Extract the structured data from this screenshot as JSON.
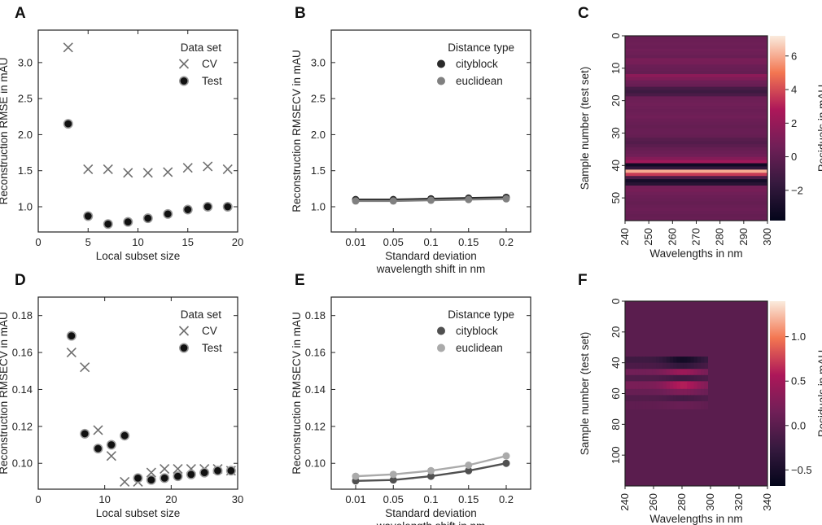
{
  "colors": {
    "cross": "#707070",
    "test_face": "#111111",
    "test_edge": "#9a9a9a",
    "cityblock_top": "#2a2a2a",
    "euclidean_top": "#808080",
    "cityblock_bottom": "#505050",
    "euclidean_bottom": "#aaaaaa",
    "heat_base": "#a0225a"
  },
  "chart_data": [
    {
      "id": "A",
      "panel_label": "A",
      "type": "scatter",
      "xlabel": "Local subset size",
      "ylabel": "Reconstruction RMSE in mAU",
      "xlim": [
        0,
        20
      ],
      "ylim": [
        0.65,
        3.45
      ],
      "xticks": [
        0,
        5,
        10,
        15,
        20
      ],
      "yticks": [
        1.0,
        1.5,
        2.0,
        2.5,
        3.0
      ],
      "ytick_labels": [
        "1.0",
        "1.5",
        "2.0",
        "2.5",
        "3.0"
      ],
      "legend_title": "Data set",
      "series": [
        {
          "name": "CV",
          "marker": "x",
          "x": [
            3,
            5,
            7,
            9,
            11,
            13,
            15,
            17,
            19
          ],
          "values": [
            3.21,
            1.52,
            1.52,
            1.47,
            1.47,
            1.48,
            1.54,
            1.56,
            1.52
          ]
        },
        {
          "name": "Test",
          "marker": "o",
          "x": [
            3,
            5,
            7,
            9,
            11,
            13,
            15,
            17,
            19
          ],
          "values": [
            2.15,
            0.87,
            0.76,
            0.79,
            0.84,
            0.9,
            0.96,
            1.0,
            1.0
          ]
        }
      ]
    },
    {
      "id": "B",
      "panel_label": "B",
      "type": "line",
      "xlabel_lines": [
        "Standard deviation",
        "wavelength shift in nm"
      ],
      "ylabel": "Reconstruction RMSECV in mAU",
      "categories": [
        "0.01",
        "0.05",
        "0.1",
        "0.15",
        "0.2"
      ],
      "ylim": [
        0.65,
        3.45
      ],
      "yticks": [
        1.0,
        1.5,
        2.0,
        2.5,
        3.0
      ],
      "ytick_labels": [
        "1.0",
        "1.5",
        "2.0",
        "2.5",
        "3.0"
      ],
      "legend_title": "Distance type",
      "series": [
        {
          "name": "cityblock",
          "values": [
            1.1,
            1.1,
            1.11,
            1.12,
            1.13
          ]
        },
        {
          "name": "euclidean",
          "values": [
            1.08,
            1.08,
            1.09,
            1.1,
            1.11
          ]
        }
      ]
    },
    {
      "id": "C",
      "panel_label": "C",
      "type": "heatmap",
      "xlabel": "Wavelengths in nm",
      "ylabel": "Sample number (test set)",
      "xrange": [
        240,
        300
      ],
      "yrange": [
        0,
        57
      ],
      "xticks": [
        240,
        250,
        260,
        270,
        280,
        290,
        300
      ],
      "yticks": [
        0,
        10,
        20,
        30,
        40,
        50
      ],
      "colorbar_label": "Residuals in mAU",
      "colorbar_range": [
        -3.8,
        7.2
      ],
      "colorbar_ticks": [
        -2,
        0,
        2,
        4,
        6
      ],
      "row_values": [
        0.3,
        0.4,
        0.5,
        0.4,
        0.6,
        0.5,
        0.3,
        0.9,
        0.8,
        0.4,
        0.3,
        0.2,
        1.6,
        1.1,
        0.5,
        0.3,
        -0.9,
        -1.3,
        -0.8,
        0.4,
        0.5,
        0.6,
        0.5,
        0.4,
        0.5,
        0.6,
        0.4,
        0.3,
        0.2,
        0.3,
        0.3,
        0.2,
        -0.3,
        -0.5,
        -0.2,
        0.2,
        0.4,
        0.6,
        1.3,
        2.3,
        -3.2,
        -1.8,
        6.0,
        3.6,
        -0.8,
        -2.9,
        -2.2,
        0.7,
        0.8,
        0.6,
        0.4,
        0.3,
        0.2,
        0.3,
        0.4,
        0.3,
        0.2,
        0.3
      ]
    },
    {
      "id": "D",
      "panel_label": "D",
      "type": "scatter",
      "xlabel": "Local subset size",
      "ylabel": "Reconstruction RMSECV in mAU",
      "xlim": [
        0,
        30
      ],
      "ylim": [
        0.086,
        0.19
      ],
      "xticks": [
        0,
        10,
        20,
        30
      ],
      "yticks": [
        0.1,
        0.12,
        0.14,
        0.16,
        0.18
      ],
      "ytick_labels": [
        "0.10",
        "0.12",
        "0.14",
        "0.16",
        "0.18"
      ],
      "legend_title": "Data set",
      "series": [
        {
          "name": "CV",
          "marker": "x",
          "x": [
            5,
            7,
            9,
            11,
            13,
            15,
            17,
            19,
            21,
            23,
            25,
            27,
            29
          ],
          "values": [
            0.16,
            0.152,
            0.118,
            0.104,
            0.09,
            0.09,
            0.095,
            0.097,
            0.097,
            0.097,
            0.097,
            0.097,
            0.096
          ]
        },
        {
          "name": "Test",
          "marker": "o",
          "x": [
            5,
            7,
            9,
            11,
            13,
            15,
            17,
            19,
            21,
            23,
            25,
            27,
            29
          ],
          "values": [
            0.169,
            0.116,
            0.108,
            0.11,
            0.115,
            0.092,
            0.091,
            0.092,
            0.093,
            0.094,
            0.095,
            0.096,
            0.096
          ]
        }
      ]
    },
    {
      "id": "E",
      "panel_label": "E",
      "type": "line",
      "xlabel_lines": [
        "Standard deviation",
        "wavelength shift in nm"
      ],
      "ylabel": "Reconstruction RMSECV in mAU",
      "categories": [
        "0.01",
        "0.05",
        "0.1",
        "0.15",
        "0.2"
      ],
      "ylim": [
        0.086,
        0.19
      ],
      "yticks": [
        0.1,
        0.12,
        0.14,
        0.16,
        0.18
      ],
      "ytick_labels": [
        "0.10",
        "0.12",
        "0.14",
        "0.16",
        "0.18"
      ],
      "legend_title": "Distance type",
      "series": [
        {
          "name": "cityblock",
          "values": [
            0.0905,
            0.091,
            0.093,
            0.096,
            0.1
          ]
        },
        {
          "name": "euclidean",
          "values": [
            0.093,
            0.094,
            0.096,
            0.099,
            0.104
          ]
        }
      ]
    },
    {
      "id": "F",
      "panel_label": "F",
      "type": "heatmap",
      "xlabel": "Wavelengths in nm",
      "ylabel": "Sample number (test set)",
      "xrange": [
        240,
        340
      ],
      "yrange": [
        0,
        120
      ],
      "xticks": [
        240,
        260,
        280,
        300,
        320,
        340
      ],
      "yticks": [
        0,
        20,
        40,
        60,
        80,
        100
      ],
      "colorbar_label": "Residuals in mAU",
      "colorbar_range": [
        -0.68,
        1.4
      ],
      "colorbar_ticks": [
        -0.5,
        0.0,
        0.5,
        1.0
      ],
      "colorbar_tick_labels": [
        "−0.5",
        "0.0",
        "0.5",
        "1.0"
      ],
      "active_wavelength_range": [
        240,
        298
      ],
      "band_rows": [
        [
          36,
          40,
          -0.55
        ],
        [
          40,
          44,
          -0.3
        ],
        [
          44,
          48,
          0.45
        ],
        [
          48,
          52,
          -0.2
        ],
        [
          52,
          57,
          0.6
        ],
        [
          57,
          61,
          0.25
        ],
        [
          61,
          65,
          -0.15
        ],
        [
          65,
          70,
          0.1
        ]
      ]
    }
  ]
}
